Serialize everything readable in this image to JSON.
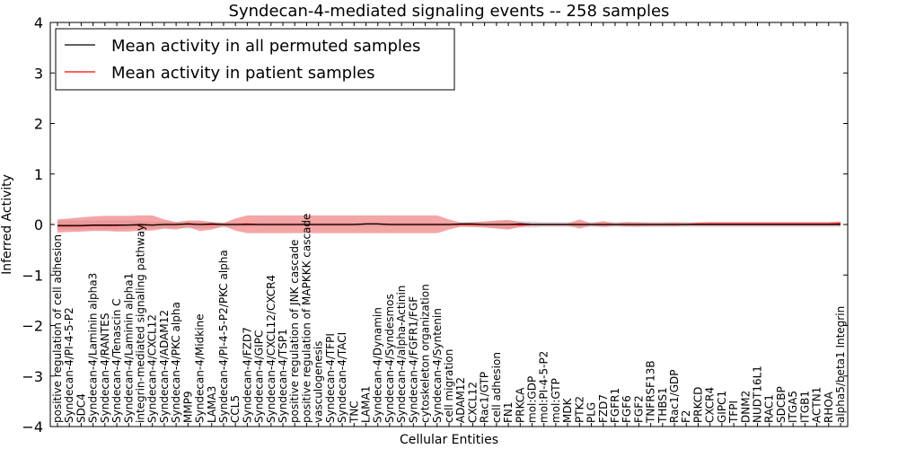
{
  "chart_data": {
    "type": "line",
    "title": "Syndecan-4-mediated signaling events -- 258 samples",
    "xlabel": "Cellular Entities",
    "ylabel": "Inferred Activity",
    "ylim": [
      -4,
      4
    ],
    "yticks": [
      "4",
      "3",
      "2",
      "1",
      "0",
      "−1",
      "−2",
      "−3",
      "−4"
    ],
    "ytick_values": [
      4,
      3,
      2,
      1,
      0,
      -1,
      -2,
      -3,
      -4
    ],
    "legend_position": "top-left",
    "colors": {
      "permuted": "#000000",
      "patient": "#ff0000",
      "patient_band": "#f08080",
      "permuted_band": "#c8c8c8"
    },
    "categories": [
      "positive regulation of cell adhesion",
      "Syndecan-4/PI-4-5-P2",
      "SDC4",
      "Syndecan-4/Laminin alpha3",
      "Syndecan-4/RANTES",
      "Syndecan-4/Tenascin C",
      "Syndecan-4/Laminin alpha1",
      "integrin-mediated signaling pathway",
      "Syndecan-4/CXCL12",
      "Syndecan-4/ADAM12",
      "Syndecan-4/PKC alpha",
      "MMP9",
      "Syndecan-4/Midkine",
      "LAMA3",
      "Syndecan-4/PI-4-5-P2/PKC alpha",
      "CCL5",
      "Syndecan-4/FZD7",
      "Syndecan-4/GIPC",
      "Syndecan-4/CXCL12/CXCR4",
      "Syndecan-4/TSP1",
      "positive regulation of JNK cascade",
      "positive regulation of MAPKKK cascade",
      "vasculogenesis",
      "Syndecan-4/TFPI",
      "Syndecan-4/TACI",
      "TNC",
      "LAMA1",
      "Syndecan-4/Dynamin",
      "Syndecan-4/Syndesmos",
      "Syndecan-4/alpha-Actinin",
      "Syndecan-4/FGFR1/FGF",
      "cytoskeleton organization",
      "Syndecan-4/Syntenin",
      "cell migration",
      "ADAM12",
      "CXCL12",
      "Rac1/GTP",
      "cell adhesion",
      "FN1",
      "PRKCA",
      "mol:GDP",
      "mol:PI-4-5-P2",
      "mol:GTP",
      "MDK",
      "PTK2",
      "PLG",
      "FZD7",
      "FGFR1",
      "FGF6",
      "FGF2",
      "TNFRSF13B",
      "THBS1",
      "Rac1/GDP",
      "F2",
      "PRKCD",
      "CXCR4",
      "GIPC1",
      "TFPI",
      "DNM2",
      "NUDT16L1",
      "RAC1",
      "SDCBP",
      "ITGA5",
      "ITGB1",
      "ACTN1",
      "RHOA",
      "alpha5/beta1 Integrin"
    ],
    "series": [
      {
        "name": "Mean activity in all permuted samples",
        "values": [
          -0.02,
          -0.02,
          -0.02,
          -0.01,
          -0.01,
          -0.01,
          -0.01,
          0.0,
          -0.01,
          0.0,
          0.0,
          0.01,
          0.0,
          0.01,
          0.0,
          0.0,
          0.0,
          0.0,
          0.0,
          0.0,
          0.0,
          0.0,
          0.0,
          0.0,
          0.0,
          0.0,
          0.01,
          0.01,
          0.0,
          0.0,
          0.0,
          0.0,
          0.0,
          0.0,
          0.01,
          0.01,
          0.0,
          0.0,
          0.0,
          0.01,
          0.0,
          0.0,
          0.0,
          0.0,
          0.0,
          0.0,
          0.0,
          0.0,
          0.0,
          0.0,
          0.0,
          0.0,
          0.0,
          0.0,
          0.0,
          0.0,
          0.0,
          0.0,
          0.0,
          0.0,
          0.0,
          0.0,
          0.0,
          0.0,
          0.0,
          0.0,
          0.0
        ],
        "band_upper": [
          0.08,
          0.08,
          0.08,
          0.08,
          0.08,
          0.08,
          0.08,
          0.06,
          0.06,
          0.06,
          0.05,
          0.06,
          0.05,
          0.05,
          0.04,
          0.04,
          0.03,
          0.03,
          0.03,
          0.03,
          0.03,
          0.03,
          0.03,
          0.03,
          0.03,
          0.03,
          0.04,
          0.04,
          0.03,
          0.03,
          0.03,
          0.03,
          0.03,
          0.03,
          0.04,
          0.04,
          0.05,
          0.06,
          0.08,
          0.06,
          0.06,
          0.05,
          0.05,
          0.05,
          0.05,
          0.05,
          0.05,
          0.05,
          0.05,
          0.05,
          0.05,
          0.05,
          0.05,
          0.05,
          0.05,
          0.05,
          0.05,
          0.05,
          0.05,
          0.05,
          0.05,
          0.05,
          0.05,
          0.05,
          0.05,
          0.05,
          0.05
        ],
        "band_lower": [
          -0.1,
          -0.1,
          -0.1,
          -0.1,
          -0.1,
          -0.1,
          -0.09,
          -0.08,
          -0.08,
          -0.08,
          -0.07,
          -0.08,
          -0.07,
          -0.07,
          -0.06,
          -0.05,
          -0.04,
          -0.04,
          -0.04,
          -0.04,
          -0.04,
          -0.04,
          -0.04,
          -0.04,
          -0.04,
          -0.04,
          -0.04,
          -0.04,
          -0.04,
          -0.04,
          -0.04,
          -0.04,
          -0.04,
          -0.04,
          -0.05,
          -0.05,
          -0.05,
          -0.06,
          -0.08,
          -0.06,
          -0.06,
          -0.05,
          -0.05,
          -0.05,
          -0.05,
          -0.05,
          -0.05,
          -0.05,
          -0.05,
          -0.05,
          -0.05,
          -0.05,
          -0.05,
          -0.05,
          -0.05,
          -0.05,
          -0.05,
          -0.05,
          -0.05,
          -0.05,
          -0.05,
          -0.05,
          -0.05,
          -0.05,
          -0.05,
          -0.05,
          -0.05
        ]
      },
      {
        "name": "Mean activity in patient samples",
        "values": [
          -0.03,
          -0.03,
          -0.03,
          -0.02,
          -0.02,
          -0.02,
          -0.01,
          -0.01,
          -0.01,
          0.0,
          0.0,
          0.01,
          0.0,
          0.0,
          0.0,
          0.0,
          0.01,
          0.0,
          0.0,
          0.0,
          0.0,
          0.0,
          0.0,
          0.0,
          0.0,
          0.0,
          0.01,
          0.01,
          0.0,
          0.0,
          0.0,
          0.0,
          0.0,
          0.0,
          0.0,
          0.0,
          0.0,
          0.0,
          0.0,
          -0.01,
          0.0,
          0.0,
          0.0,
          0.0,
          0.0,
          0.0,
          0.0,
          0.0,
          0.0,
          0.0,
          0.0,
          0.0,
          0.0,
          0.0,
          0.01,
          0.01,
          0.01,
          0.01,
          0.01,
          0.01,
          0.01,
          0.01,
          0.01,
          0.01,
          0.01,
          0.01,
          0.02
        ],
        "band_upper": [
          0.1,
          0.12,
          0.14,
          0.16,
          0.17,
          0.17,
          0.17,
          0.18,
          0.18,
          0.1,
          0.05,
          0.08,
          0.08,
          0.05,
          0.03,
          0.12,
          0.18,
          0.18,
          0.18,
          0.18,
          0.18,
          0.18,
          0.18,
          0.18,
          0.18,
          0.18,
          0.18,
          0.18,
          0.18,
          0.18,
          0.18,
          0.18,
          0.18,
          0.1,
          0.04,
          0.05,
          0.06,
          0.08,
          0.09,
          0.05,
          0.02,
          0.02,
          0.02,
          0.02,
          0.1,
          0.02,
          0.07,
          0.02,
          0.05,
          0.04,
          0.03,
          0.03,
          0.04,
          0.03,
          0.04,
          0.05,
          0.05,
          0.05,
          0.05,
          0.05,
          0.05,
          0.05,
          0.05,
          0.05,
          0.05,
          0.05,
          0.06
        ],
        "band_lower": [
          -0.16,
          -0.15,
          -0.14,
          -0.13,
          -0.13,
          -0.14,
          -0.14,
          -0.12,
          -0.12,
          -0.08,
          -0.1,
          -0.05,
          -0.13,
          -0.1,
          -0.03,
          -0.12,
          -0.17,
          -0.17,
          -0.17,
          -0.17,
          -0.17,
          -0.17,
          -0.17,
          -0.17,
          -0.17,
          -0.17,
          -0.17,
          -0.17,
          -0.17,
          -0.17,
          -0.17,
          -0.17,
          -0.17,
          -0.1,
          -0.04,
          -0.05,
          -0.06,
          -0.08,
          -0.1,
          -0.05,
          -0.02,
          -0.02,
          -0.02,
          -0.02,
          -0.08,
          -0.02,
          -0.05,
          -0.02,
          -0.04,
          -0.04,
          -0.03,
          -0.03,
          -0.03,
          -0.02,
          -0.02,
          -0.02,
          -0.02,
          -0.02,
          -0.02,
          -0.02,
          -0.02,
          -0.02,
          -0.02,
          -0.02,
          -0.02,
          -0.02,
          -0.02
        ]
      }
    ]
  }
}
